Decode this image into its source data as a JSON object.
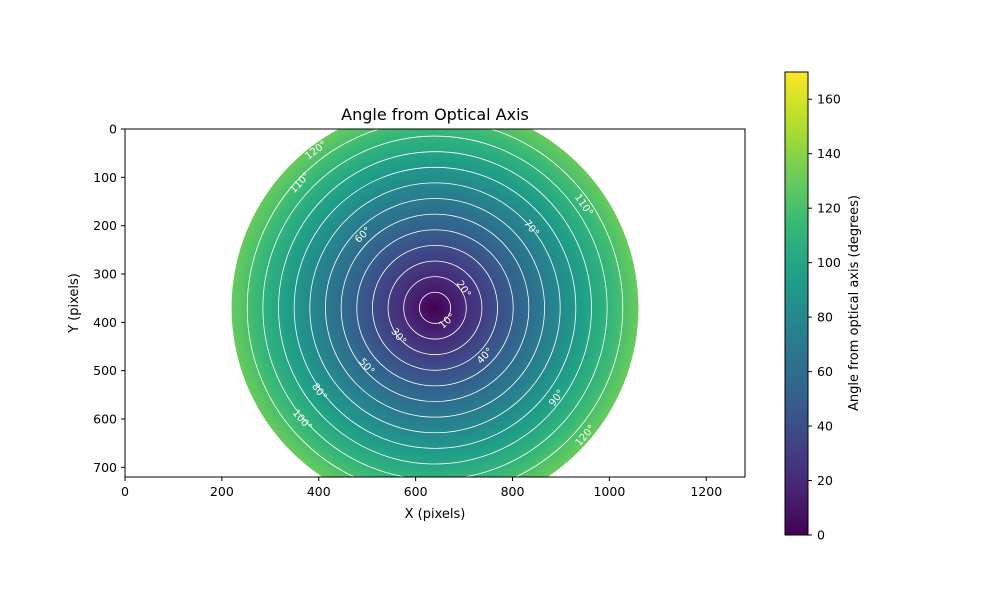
{
  "chart_data": {
    "type": "heatmap",
    "title": "Angle from Optical Axis",
    "xlabel": "X (pixels)",
    "ylabel": "Y (pixels)",
    "xlim": [
      0,
      1280
    ],
    "ylim": [
      720,
      0
    ],
    "x_ticks": [
      0,
      200,
      400,
      600,
      800,
      1000,
      1200
    ],
    "y_ticks": [
      0,
      100,
      200,
      300,
      400,
      500,
      600,
      700
    ],
    "center": [
      640,
      370
    ],
    "max_radius": 420,
    "max_angle": 130,
    "colormap": "viridis",
    "contour_levels": [
      10,
      20,
      30,
      40,
      50,
      60,
      70,
      80,
      90,
      100,
      110,
      120
    ],
    "contour_color": "#ffffff",
    "contour_labels": [
      {
        "text": "10°",
        "level": 10,
        "x": 666,
        "y": 398
      },
      {
        "text": "20°",
        "level": 20,
        "x": 698,
        "y": 332
      },
      {
        "text": "30°",
        "level": 30,
        "x": 564,
        "y": 430
      },
      {
        "text": "40°",
        "level": 40,
        "x": 744,
        "y": 470
      },
      {
        "text": "50°",
        "level": 50,
        "x": 498,
        "y": 492
      },
      {
        "text": "60°",
        "level": 60,
        "x": 492,
        "y": 220
      },
      {
        "text": "70°",
        "level": 70,
        "x": 838,
        "y": 206
      },
      {
        "text": "80°",
        "level": 80,
        "x": 400,
        "y": 544
      },
      {
        "text": "90°",
        "level": 90,
        "x": 892,
        "y": 557
      },
      {
        "text": "100°",
        "level": 100,
        "x": 365,
        "y": 603
      },
      {
        "text": "110°",
        "level": 110,
        "x": 362,
        "y": 112
      },
      {
        "text": "110°",
        "level": 110,
        "x": 946,
        "y": 158
      },
      {
        "text": "120°",
        "level": 120,
        "x": 395,
        "y": 45
      },
      {
        "text": "120°",
        "level": 120,
        "x": 951,
        "y": 635
      }
    ],
    "colorbar": {
      "label": "Angle from optical axis (degrees)",
      "range": [
        0,
        170
      ],
      "ticks": [
        0,
        20,
        40,
        60,
        80,
        100,
        120,
        140,
        160
      ]
    }
  }
}
